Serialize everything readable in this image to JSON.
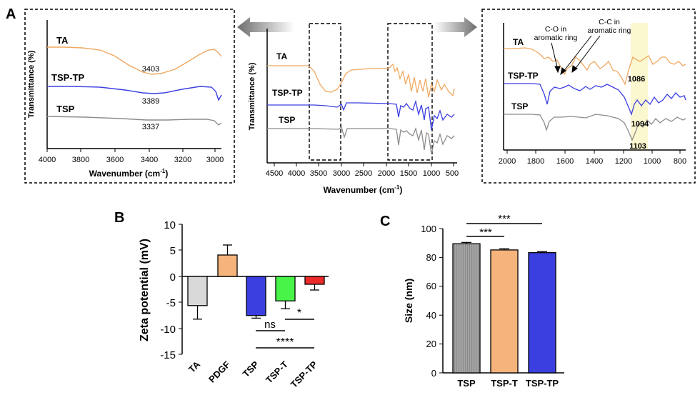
{
  "panel_labels": {
    "a": "A",
    "b": "B",
    "c": "C"
  },
  "colors": {
    "TA": "#f0a860",
    "TSP_TP": "#3b3fe0",
    "TSP": "#8c8c8c",
    "PDGF": "#f4b47c",
    "TSP_T": "#49f449",
    "TSP_TP_bar": "#3b3fe0",
    "TSP_TP_zeta": "#ee2b2b",
    "TA_bar": "#d9d9d9",
    "highlight": "#fbf7cf"
  },
  "chart_data": [
    {
      "id": "ftir-left",
      "type": "line",
      "xlabel": "Wavenumber (cm",
      "xlabel_sup": "-1",
      "xlabel_end": ")",
      "ylabel": "Transmittance (%)",
      "xlim": [
        4000,
        2950
      ],
      "xticks": [
        "4000",
        "3800",
        "3600",
        "3400",
        "3200",
        "3000"
      ],
      "series": [
        {
          "name": "TA",
          "peak_label": "3403"
        },
        {
          "name": "TSP-TP",
          "peak_label": "3389"
        },
        {
          "name": "TSP",
          "peak_label": "3337"
        }
      ]
    },
    {
      "id": "ftir-center",
      "type": "line",
      "xlabel": "Wavenumber (cm",
      "xlabel_sup": "-1",
      "xlabel_end": ")",
      "ylabel": "Transmittance (%)",
      "xlim": [
        4500,
        500
      ],
      "xticks": [
        "4500",
        "4000",
        "3500",
        "3000",
        "2500",
        "2000",
        "1500",
        "1000",
        "500"
      ],
      "series": [
        {
          "name": "TA"
        },
        {
          "name": "TSP-TP"
        },
        {
          "name": "TSP"
        }
      ]
    },
    {
      "id": "ftir-right",
      "type": "line",
      "xlim": [
        2000,
        800
      ],
      "xticks": [
        "2000",
        "1800",
        "1600",
        "1400",
        "1200",
        "1000",
        "800"
      ],
      "annotations": [
        "C-O in",
        "aromatic ring",
        "C-C in",
        "aromatic ring",
        "1086",
        "1094",
        "1103"
      ],
      "series": [
        {
          "name": "TA"
        },
        {
          "name": "TSP-TP"
        },
        {
          "name": "TSP"
        }
      ]
    },
    {
      "id": "zeta",
      "type": "bar",
      "ylabel": "Zeta potential (mV)",
      "ylim": [
        -15,
        10
      ],
      "yticks": [
        "10",
        "5",
        "0",
        "-5",
        "-10",
        "-15"
      ],
      "categories": [
        "TA",
        "PDGF",
        "TSP",
        "TSP-T",
        "TSP-TP"
      ],
      "values": [
        -5.6,
        4.1,
        -7.5,
        -4.7,
        -1.5
      ],
      "errors": [
        2.6,
        1.9,
        0.5,
        1.5,
        1.1
      ],
      "significance": [
        "*",
        "ns",
        "****"
      ]
    },
    {
      "id": "size",
      "type": "bar",
      "ylabel": "Size (nm)",
      "ylim": [
        0,
        100
      ],
      "yticks": [
        "100",
        "80",
        "60",
        "40",
        "20",
        "0"
      ],
      "categories": [
        "TSP",
        "TSP-T",
        "TSP-TP"
      ],
      "values": [
        89.5,
        85.2,
        83.3
      ],
      "errors": [
        0.9,
        0.8,
        0.7
      ],
      "significance": [
        "***",
        "***"
      ]
    }
  ]
}
